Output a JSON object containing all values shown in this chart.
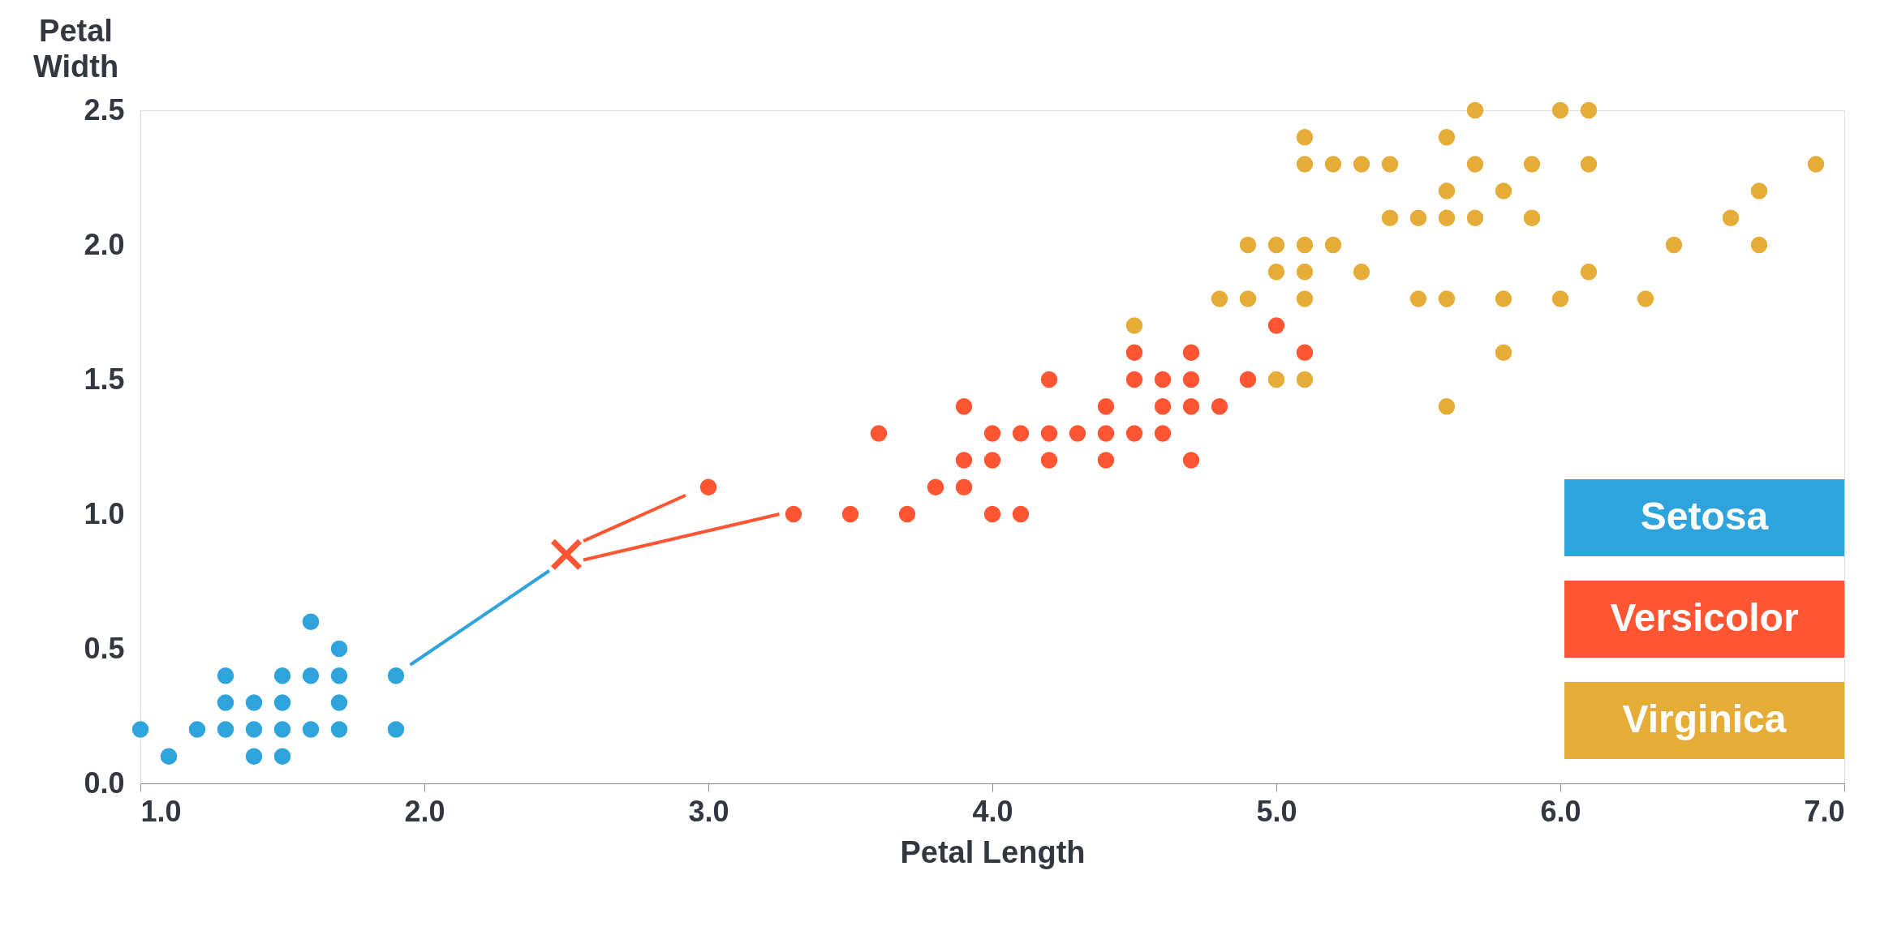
{
  "chart_data": {
    "type": "scatter",
    "xlabel": "Petal Length",
    "ylabel": "Petal Width",
    "xlim": [
      1.0,
      7.0
    ],
    "xticks": [
      {
        "value": 1,
        "label": "1.0"
      },
      {
        "value": 2,
        "label": "2.0"
      },
      {
        "value": 3,
        "label": "3.0"
      },
      {
        "value": 4,
        "label": "4.0"
      },
      {
        "value": 5,
        "label": "5.0"
      },
      {
        "value": 6,
        "label": "6.0"
      },
      {
        "value": 7,
        "label": "7.0"
      }
    ],
    "ylim": [
      0,
      2.5
    ],
    "yticks": [
      {
        "value": 0,
        "label": "0.0"
      },
      0.5,
      {
        "value": 1,
        "label": "1.0"
      },
      1.5,
      {
        "value": 2,
        "label": "2.0"
      },
      2.5
    ],
    "grid": false,
    "legend": "bottom right",
    "marker": "circle",
    "series": [
      {
        "name": "Setosa",
        "color": "#2ea3dc",
        "x": [
          1.0,
          1.1,
          1.2,
          1.3,
          1.3,
          1.3,
          1.4,
          1.4,
          1.4,
          1.5,
          1.5,
          1.5,
          1.5,
          1.6,
          1.6,
          1.6,
          1.7,
          1.7,
          1.7,
          1.7,
          1.9,
          1.9
        ],
        "values": [
          0.2,
          0.1,
          0.2,
          0.4,
          0.3,
          0.2,
          0.3,
          0.2,
          0.1,
          0.4,
          0.3,
          0.2,
          0.1,
          0.6,
          0.4,
          0.2,
          0.5,
          0.4,
          0.3,
          0.2,
          0.4,
          0.2
        ]
      },
      {
        "name": "Versicolor",
        "color": "#ff5533",
        "x": [
          3.0,
          3.3,
          3.5,
          3.6,
          3.7,
          3.8,
          3.9,
          3.9,
          3.9,
          4.0,
          4.0,
          4.0,
          4.1,
          4.1,
          4.2,
          4.2,
          4.2,
          4.3,
          4.4,
          4.4,
          4.4,
          4.5,
          4.5,
          4.5,
          4.6,
          4.6,
          4.6,
          4.7,
          4.7,
          4.7,
          4.7,
          4.8,
          4.9,
          5.0,
          5.1
        ],
        "values": [
          1.1,
          1.0,
          1.0,
          1.3,
          1.0,
          1.1,
          1.4,
          1.2,
          1.1,
          1.3,
          1.2,
          1.0,
          1.3,
          1.0,
          1.5,
          1.3,
          1.2,
          1.3,
          1.4,
          1.3,
          1.2,
          1.6,
          1.5,
          1.3,
          1.5,
          1.4,
          1.3,
          1.6,
          1.5,
          1.4,
          1.2,
          1.4,
          1.5,
          1.7,
          1.6
        ]
      },
      {
        "name": "Virginica",
        "color": "#e6ac38",
        "x": [
          4.5,
          4.8,
          4.9,
          4.9,
          5.0,
          5.0,
          5.0,
          5.1,
          5.1,
          5.1,
          5.1,
          5.1,
          5.1,
          5.2,
          5.2,
          5.3,
          5.3,
          5.4,
          5.4,
          5.5,
          5.5,
          5.6,
          5.6,
          5.6,
          5.6,
          5.6,
          5.7,
          5.7,
          5.7,
          5.8,
          5.8,
          5.8,
          5.9,
          5.9,
          6.0,
          6.0,
          6.1,
          6.1,
          6.1,
          6.3,
          6.4,
          6.6,
          6.7,
          6.7,
          6.9
        ],
        "values": [
          1.7,
          1.8,
          2.0,
          1.8,
          2.0,
          1.9,
          1.5,
          2.4,
          2.3,
          2.0,
          1.9,
          1.8,
          1.5,
          2.3,
          2.0,
          2.3,
          1.9,
          2.3,
          2.1,
          2.1,
          1.8,
          2.4,
          2.2,
          2.1,
          1.8,
          1.4,
          2.5,
          2.3,
          2.1,
          2.2,
          1.8,
          1.6,
          2.3,
          2.1,
          2.5,
          1.8,
          2.5,
          2.3,
          1.9,
          1.8,
          2.0,
          2.1,
          2.2,
          2.0,
          2.3
        ]
      },
      {
        "type": "line",
        "color": "#2ea3dc",
        "marker": "none",
        "x": [
          1.95,
          2.44
        ],
        "values": [
          0.44,
          0.79
        ]
      },
      {
        "type": "line",
        "color": "#ff5533",
        "marker": "none",
        "x": [
          2.56,
          2.92
        ],
        "values": [
          0.9,
          1.07
        ]
      },
      {
        "type": "line",
        "color": "#ff5533",
        "marker": "none",
        "x": [
          2.56,
          3.25
        ],
        "values": [
          0.83,
          1.0
        ]
      },
      {
        "color": "#ff5533",
        "marker": "cross",
        "x": [
          2.5
        ],
        "values": [
          0.85
        ]
      }
    ]
  }
}
